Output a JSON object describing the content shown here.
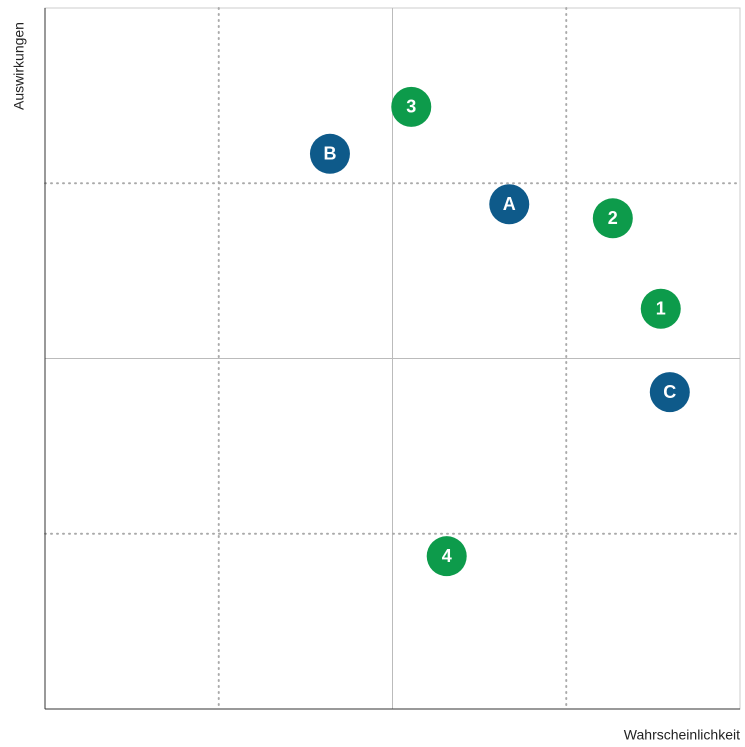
{
  "chart_data": {
    "type": "scatter",
    "xlabel": "Wahrscheinlichkeit",
    "ylabel": "Auswirkungen",
    "xlim": [
      0,
      100
    ],
    "ylim": [
      0,
      100
    ],
    "grid": true,
    "points": [
      {
        "label": "A",
        "x": 66.8,
        "y": 72.0,
        "color": "#0e5a8a"
      },
      {
        "label": "B",
        "x": 41.0,
        "y": 79.2,
        "color": "#0e5a8a"
      },
      {
        "label": "C",
        "x": 89.9,
        "y": 45.2,
        "color": "#0e5a8a"
      },
      {
        "label": "1",
        "x": 88.6,
        "y": 57.1,
        "color": "#0d9b4b"
      },
      {
        "label": "2",
        "x": 81.7,
        "y": 70.0,
        "color": "#0d9b4b"
      },
      {
        "label": "3",
        "x": 52.7,
        "y": 85.9,
        "color": "#0d9b4b"
      },
      {
        "label": "4",
        "x": 57.8,
        "y": 21.8,
        "color": "#0d9b4b"
      }
    ]
  }
}
